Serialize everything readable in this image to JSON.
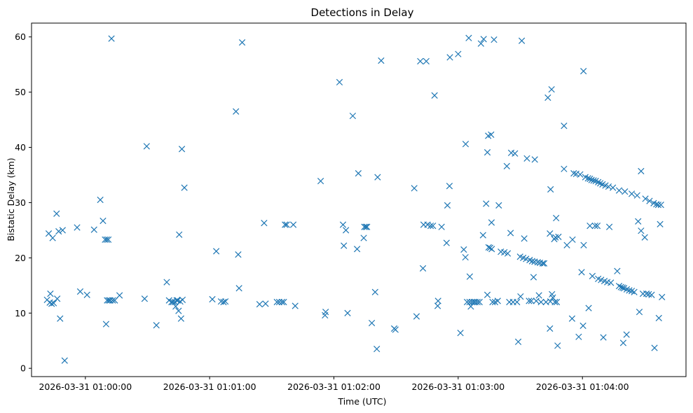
{
  "chart_data": {
    "type": "scatter",
    "title": "Detections in Delay",
    "xlabel": "Time (UTC)",
    "ylabel": "Bistatic Delay (km)",
    "x_unit": "seconds after 2026-03-31 01:00:00",
    "xlim": [
      -26,
      290
    ],
    "ylim": [
      -1.5,
      62.5
    ],
    "x_ticks": [
      {
        "value": 0,
        "label": "2026-03-31 01:00:00"
      },
      {
        "value": 60,
        "label": "2026-03-31 01:01:00"
      },
      {
        "value": 120,
        "label": "2026-03-31 01:02:00"
      },
      {
        "value": 180,
        "label": "2026-03-31 01:03:00"
      },
      {
        "value": 240,
        "label": "2026-03-31 01:04:00"
      }
    ],
    "y_ticks": [
      0,
      10,
      20,
      30,
      40,
      50,
      60
    ],
    "marker": "x",
    "color": "#1f77b4",
    "grid": false,
    "points": [
      [
        -18.5,
        12.4
      ],
      [
        -17.7,
        24.4
      ],
      [
        -17.2,
        11.9
      ],
      [
        -16.9,
        13.5
      ],
      [
        -16.3,
        11.7
      ],
      [
        -15.8,
        23.6
      ],
      [
        -15.3,
        11.8
      ],
      [
        -13.9,
        28.0
      ],
      [
        -13.6,
        12.6
      ],
      [
        -12.9,
        24.8
      ],
      [
        -12.2,
        9.0
      ],
      [
        -11.0,
        25.0
      ],
      [
        -10.0,
        1.4
      ],
      [
        -4.0,
        25.5
      ],
      [
        -2.5,
        13.9
      ],
      [
        0.8,
        13.3
      ],
      [
        4.2,
        25.1
      ],
      [
        7.2,
        30.5
      ],
      [
        8.5,
        26.7
      ],
      [
        9.5,
        23.3
      ],
      [
        10.0,
        8.0
      ],
      [
        10.3,
        23.3
      ],
      [
        10.5,
        12.3
      ],
      [
        11.1,
        23.3
      ],
      [
        11.3,
        12.3
      ],
      [
        12.0,
        12.3
      ],
      [
        12.6,
        59.7
      ],
      [
        13.2,
        12.3
      ],
      [
        14.2,
        12.3
      ],
      [
        16.5,
        13.2
      ],
      [
        28.6,
        12.6
      ],
      [
        29.6,
        40.2
      ],
      [
        34.3,
        7.8
      ],
      [
        39.3,
        15.6
      ],
      [
        40.4,
        12.3
      ],
      [
        41.6,
        12.0
      ],
      [
        42.3,
        12.0
      ],
      [
        43.2,
        12.0
      ],
      [
        43.6,
        11.2
      ],
      [
        44.1,
        12.3
      ],
      [
        44.6,
        12.3
      ],
      [
        45.0,
        10.4
      ],
      [
        45.3,
        24.2
      ],
      [
        45.8,
        12.1
      ],
      [
        46.6,
        39.7
      ],
      [
        46.2,
        9.0
      ],
      [
        46.9,
        12.4
      ],
      [
        47.8,
        32.7
      ],
      [
        61.3,
        12.5
      ],
      [
        63.2,
        21.2
      ],
      [
        65.5,
        12.1
      ],
      [
        66.7,
        12.0
      ],
      [
        67.6,
        12.1
      ],
      [
        72.7,
        46.5
      ],
      [
        73.8,
        20.6
      ],
      [
        74.2,
        14.5
      ],
      [
        75.7,
        59.0
      ],
      [
        84.1,
        11.6
      ],
      [
        86.3,
        26.3
      ],
      [
        87.0,
        11.7
      ],
      [
        92.5,
        12.0
      ],
      [
        93.6,
        12.0
      ],
      [
        94.9,
        12.0
      ],
      [
        95.8,
        12.0
      ],
      [
        96.4,
        26.0
      ],
      [
        97.2,
        26.0
      ],
      [
        100.4,
        26.0
      ],
      [
        101.3,
        11.3
      ],
      [
        113.6,
        33.9
      ],
      [
        115.7,
        9.6
      ],
      [
        116.0,
        10.2
      ],
      [
        122.7,
        51.8
      ],
      [
        124.8,
        22.2
      ],
      [
        124.4,
        26.0
      ],
      [
        125.8,
        25.0
      ],
      [
        126.6,
        10.0
      ],
      [
        129.1,
        45.7
      ],
      [
        131.2,
        21.6
      ],
      [
        131.8,
        35.3
      ],
      [
        134.4,
        23.6
      ],
      [
        134.7,
        25.6
      ],
      [
        135.4,
        25.6
      ],
      [
        136.0,
        25.6
      ],
      [
        138.3,
        8.2
      ],
      [
        139.9,
        13.8
      ],
      [
        140.7,
        3.5
      ],
      [
        141.1,
        34.6
      ],
      [
        142.8,
        55.7
      ],
      [
        149.1,
        7.2
      ],
      [
        149.7,
        7.0
      ],
      [
        158.8,
        32.6
      ],
      [
        159.9,
        9.4
      ],
      [
        161.7,
        55.6
      ],
      [
        163.0,
        18.1
      ],
      [
        163.3,
        26.0
      ],
      [
        164.6,
        55.6
      ],
      [
        165.2,
        26.0
      ],
      [
        166.7,
        25.8
      ],
      [
        168.6,
        49.4
      ],
      [
        167.8,
        25.8
      ],
      [
        170.3,
        12.2
      ],
      [
        170.1,
        11.3
      ],
      [
        172.0,
        25.6
      ],
      [
        174.4,
        22.7
      ],
      [
        174.8,
        29.5
      ],
      [
        176.0,
        56.3
      ],
      [
        175.8,
        33.0
      ],
      [
        180.0,
        56.9
      ],
      [
        181.1,
        6.4
      ],
      [
        182.7,
        21.5
      ],
      [
        183.6,
        40.6
      ],
      [
        183.5,
        20.1
      ],
      [
        184.3,
        12.0
      ],
      [
        185.1,
        59.8
      ],
      [
        185.6,
        16.6
      ],
      [
        186.1,
        11.2
      ],
      [
        185.5,
        12.0
      ],
      [
        186.6,
        12.0
      ],
      [
        187.5,
        12.0
      ],
      [
        188.3,
        12.0
      ],
      [
        189.3,
        12.0
      ],
      [
        190.3,
        12.0
      ],
      [
        191.0,
        58.8
      ],
      [
        192.0,
        24.1
      ],
      [
        192.3,
        59.6
      ],
      [
        193.5,
        29.8
      ],
      [
        194.1,
        13.3
      ],
      [
        194.5,
        42.1
      ],
      [
        194.1,
        39.1
      ],
      [
        194.7,
        21.9
      ],
      [
        195.4,
        21.8
      ],
      [
        195.9,
        42.3
      ],
      [
        196.2,
        21.6
      ],
      [
        196.1,
        26.4
      ],
      [
        197.3,
        59.5
      ],
      [
        196.6,
        12.0
      ],
      [
        197.8,
        12.0
      ],
      [
        199.1,
        12.2
      ],
      [
        199.6,
        29.5
      ],
      [
        200.6,
        21.1
      ],
      [
        202.3,
        21.0
      ],
      [
        203.5,
        36.6
      ],
      [
        204.7,
        12.0
      ],
      [
        203.9,
        20.8
      ],
      [
        205.3,
        24.5
      ],
      [
        205.6,
        39.0
      ],
      [
        206.5,
        12.0
      ],
      [
        207.4,
        38.9
      ],
      [
        208.4,
        12.0
      ],
      [
        209.0,
        4.8
      ],
      [
        210.1,
        13.0
      ],
      [
        209.9,
        20.2
      ],
      [
        210.7,
        59.3
      ],
      [
        211.4,
        20.0
      ],
      [
        211.9,
        23.5
      ],
      [
        212.8,
        19.8
      ],
      [
        213.2,
        38.0
      ],
      [
        214.2,
        12.2
      ],
      [
        214.5,
        19.6
      ],
      [
        215.3,
        12.2
      ],
      [
        215.7,
        19.4
      ],
      [
        216.4,
        16.5
      ],
      [
        216.9,
        19.3
      ],
      [
        217.0,
        37.8
      ],
      [
        217.7,
        12.2
      ],
      [
        218.4,
        19.2
      ],
      [
        219.0,
        13.2
      ],
      [
        219.5,
        19.1
      ],
      [
        220.0,
        12.0
      ],
      [
        220.8,
        19.0
      ],
      [
        221.5,
        19.0
      ],
      [
        222.4,
        12.0
      ],
      [
        223.3,
        49.0
      ],
      [
        224.3,
        7.2
      ],
      [
        224.5,
        12.1
      ],
      [
        224.3,
        24.4
      ],
      [
        224.6,
        32.4
      ],
      [
        225.1,
        50.5
      ],
      [
        225.3,
        13.4
      ],
      [
        225.7,
        12.8
      ],
      [
        226.4,
        23.4
      ],
      [
        226.7,
        12.0
      ],
      [
        227.0,
        23.7
      ],
      [
        227.3,
        27.2
      ],
      [
        227.6,
        12.0
      ],
      [
        228.0,
        4.1
      ],
      [
        228.4,
        23.8
      ],
      [
        231.1,
        43.9
      ],
      [
        231.1,
        36.1
      ],
      [
        232.5,
        22.3
      ],
      [
        235.2,
        23.3
      ],
      [
        235.0,
        9.0
      ],
      [
        235.8,
        35.3
      ],
      [
        237.0,
        35.2
      ],
      [
        238.2,
        5.7
      ],
      [
        238.9,
        35.1
      ],
      [
        239.6,
        17.4
      ],
      [
        240.3,
        7.7
      ],
      [
        240.5,
        53.8
      ],
      [
        240.6,
        22.3
      ],
      [
        241.4,
        34.6
      ],
      [
        242.7,
        34.4
      ],
      [
        243.0,
        10.9
      ],
      [
        243.6,
        34.3
      ],
      [
        243.6,
        25.8
      ],
      [
        244.4,
        34.1
      ],
      [
        244.8,
        16.7
      ],
      [
        245.4,
        34.0
      ],
      [
        246.1,
        25.8
      ],
      [
        246.4,
        33.9
      ],
      [
        247.2,
        25.8
      ],
      [
        247.6,
        33.7
      ],
      [
        247.6,
        16.2
      ],
      [
        248.6,
        33.5
      ],
      [
        249.0,
        16.0
      ],
      [
        249.7,
        33.3
      ],
      [
        250.1,
        5.6
      ],
      [
        250.6,
        15.8
      ],
      [
        251.1,
        33.1
      ],
      [
        252.0,
        15.6
      ],
      [
        252.6,
        32.9
      ],
      [
        253.0,
        25.6
      ],
      [
        253.7,
        15.5
      ],
      [
        254.7,
        32.7
      ],
      [
        256.8,
        17.6
      ],
      [
        257.7,
        14.9
      ],
      [
        257.7,
        32.2
      ],
      [
        258.6,
        14.7
      ],
      [
        259.4,
        14.6
      ],
      [
        259.7,
        4.6
      ],
      [
        260.1,
        14.5
      ],
      [
        260.5,
        32.0
      ],
      [
        261.4,
        14.3
      ],
      [
        261.3,
        6.1
      ],
      [
        262.6,
        14.1
      ],
      [
        263.8,
        14.0
      ],
      [
        263.8,
        31.6
      ],
      [
        265.0,
        13.8
      ],
      [
        266.4,
        31.3
      ],
      [
        266.9,
        26.6
      ],
      [
        267.5,
        10.2
      ],
      [
        268.3,
        35.7
      ],
      [
        268.3,
        24.9
      ],
      [
        269.2,
        13.5
      ],
      [
        270.1,
        23.7
      ],
      [
        270.4,
        30.7
      ],
      [
        270.9,
        13.5
      ],
      [
        272.0,
        13.4
      ],
      [
        272.4,
        30.3
      ],
      [
        273.4,
        13.3
      ],
      [
        274.4,
        29.9
      ],
      [
        274.8,
        3.7
      ],
      [
        275.7,
        29.7
      ],
      [
        276.6,
        29.6
      ],
      [
        276.9,
        9.1
      ],
      [
        277.5,
        26.1
      ],
      [
        277.9,
        29.6
      ],
      [
        278.4,
        12.9
      ]
    ]
  }
}
